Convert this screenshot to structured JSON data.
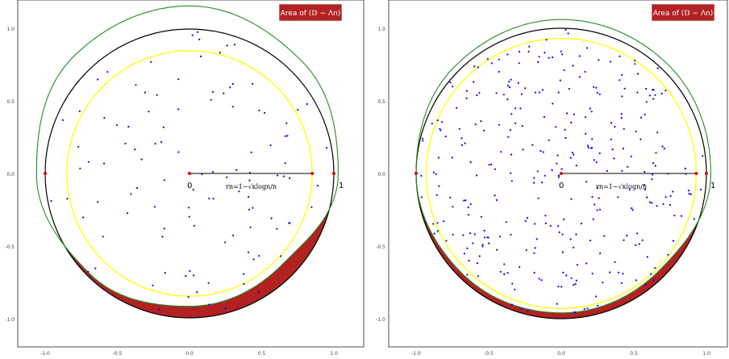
{
  "chart_data": [
    {
      "type": "scatter",
      "legend": {
        "label": "Area of (𝔻 − Λn)",
        "position": "top-right",
        "color": "#b22222"
      },
      "annotations": {
        "origin": "0",
        "one": "1",
        "radius": "rn=1−√κlogn/n"
      },
      "xticks": [
        "-1.0",
        "-0.5",
        "0.0",
        "0.5",
        "1.0"
      ],
      "yticks": [
        "1.0",
        "0.5",
        "0.0",
        "-0.5",
        "-1.0"
      ],
      "xlim": [
        -1.2,
        1.2
      ],
      "ylim": [
        -1.2,
        1.2
      ],
      "inner_radius": 0.85,
      "unit_circle_radius": 1.0,
      "colors": {
        "unit_circle": "#000000",
        "inner_circle": "#ffff00",
        "hull": "#228b22",
        "shaded": "#b22222",
        "points": "#0000ff",
        "markers": "#dd0000"
      },
      "point_count": 110,
      "seed": 7
    },
    {
      "type": "scatter",
      "legend": {
        "label": "Area of (𝔻 − Λn)",
        "position": "top-right",
        "color": "#b22222"
      },
      "annotations": {
        "origin": "0",
        "one": "1",
        "radius": "rn=1−√κlogn/n"
      },
      "xticks": [
        "-1.0",
        "-0.5",
        "0.0",
        "0.5",
        "1.0"
      ],
      "yticks": [
        "1.0",
        "0.5",
        "0.0",
        "-0.5",
        "-1.0"
      ],
      "xlim": [
        -1.2,
        1.2
      ],
      "ylim": [
        -1.2,
        1.2
      ],
      "inner_radius": 0.93,
      "unit_circle_radius": 1.0,
      "colors": {
        "unit_circle": "#000000",
        "inner_circle": "#ffff00",
        "hull": "#228b22",
        "shaded": "#b22222",
        "points": "#0000ff",
        "markers": "#dd0000"
      },
      "point_count": 330,
      "seed": 21
    }
  ]
}
